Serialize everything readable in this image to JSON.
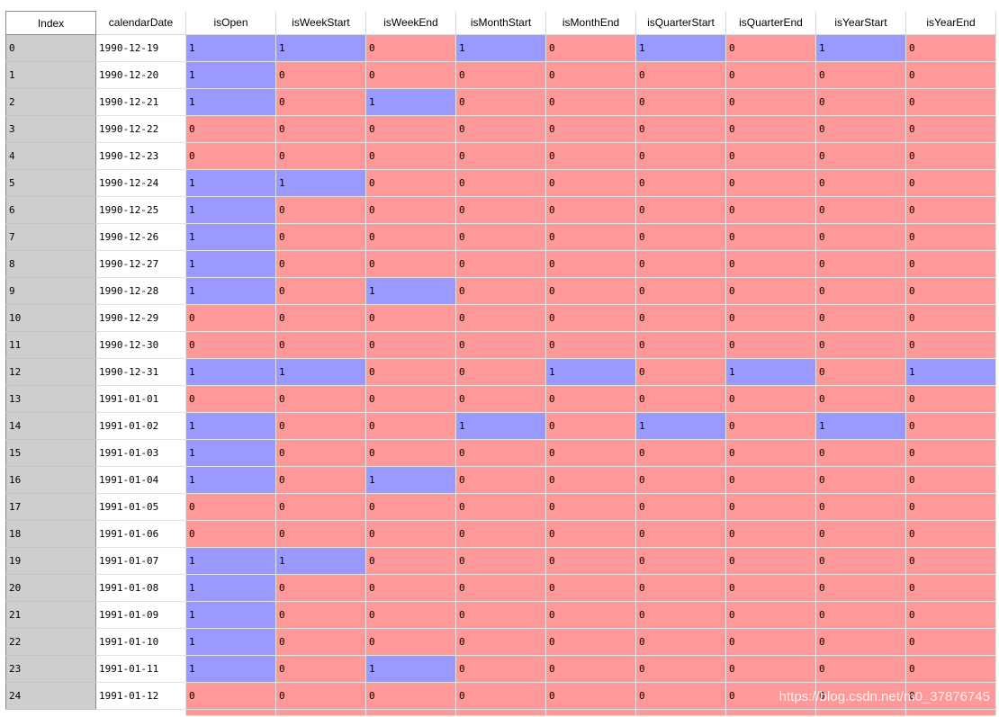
{
  "table": {
    "columns": [
      "Index",
      "calendarDate",
      "isOpen",
      "isWeekStart",
      "isWeekEnd",
      "isMonthStart",
      "isMonthEnd",
      "isQuarterStart",
      "isQuarterEnd",
      "isYearStart",
      "isYearEnd"
    ],
    "rows": [
      [
        "0",
        "1990-12-19",
        "1",
        "1",
        "0",
        "1",
        "0",
        "1",
        "0",
        "1",
        "0"
      ],
      [
        "1",
        "1990-12-20",
        "1",
        "0",
        "0",
        "0",
        "0",
        "0",
        "0",
        "0",
        "0"
      ],
      [
        "2",
        "1990-12-21",
        "1",
        "0",
        "1",
        "0",
        "0",
        "0",
        "0",
        "0",
        "0"
      ],
      [
        "3",
        "1990-12-22",
        "0",
        "0",
        "0",
        "0",
        "0",
        "0",
        "0",
        "0",
        "0"
      ],
      [
        "4",
        "1990-12-23",
        "0",
        "0",
        "0",
        "0",
        "0",
        "0",
        "0",
        "0",
        "0"
      ],
      [
        "5",
        "1990-12-24",
        "1",
        "1",
        "0",
        "0",
        "0",
        "0",
        "0",
        "0",
        "0"
      ],
      [
        "6",
        "1990-12-25",
        "1",
        "0",
        "0",
        "0",
        "0",
        "0",
        "0",
        "0",
        "0"
      ],
      [
        "7",
        "1990-12-26",
        "1",
        "0",
        "0",
        "0",
        "0",
        "0",
        "0",
        "0",
        "0"
      ],
      [
        "8",
        "1990-12-27",
        "1",
        "0",
        "0",
        "0",
        "0",
        "0",
        "0",
        "0",
        "0"
      ],
      [
        "9",
        "1990-12-28",
        "1",
        "0",
        "1",
        "0",
        "0",
        "0",
        "0",
        "0",
        "0"
      ],
      [
        "10",
        "1990-12-29",
        "0",
        "0",
        "0",
        "0",
        "0",
        "0",
        "0",
        "0",
        "0"
      ],
      [
        "11",
        "1990-12-30",
        "0",
        "0",
        "0",
        "0",
        "0",
        "0",
        "0",
        "0",
        "0"
      ],
      [
        "12",
        "1990-12-31",
        "1",
        "1",
        "0",
        "0",
        "1",
        "0",
        "1",
        "0",
        "1"
      ],
      [
        "13",
        "1991-01-01",
        "0",
        "0",
        "0",
        "0",
        "0",
        "0",
        "0",
        "0",
        "0"
      ],
      [
        "14",
        "1991-01-02",
        "1",
        "0",
        "0",
        "1",
        "0",
        "1",
        "0",
        "1",
        "0"
      ],
      [
        "15",
        "1991-01-03",
        "1",
        "0",
        "0",
        "0",
        "0",
        "0",
        "0",
        "0",
        "0"
      ],
      [
        "16",
        "1991-01-04",
        "1",
        "0",
        "1",
        "0",
        "0",
        "0",
        "0",
        "0",
        "0"
      ],
      [
        "17",
        "1991-01-05",
        "0",
        "0",
        "0",
        "0",
        "0",
        "0",
        "0",
        "0",
        "0"
      ],
      [
        "18",
        "1991-01-06",
        "0",
        "0",
        "0",
        "0",
        "0",
        "0",
        "0",
        "0",
        "0"
      ],
      [
        "19",
        "1991-01-07",
        "1",
        "1",
        "0",
        "0",
        "0",
        "0",
        "0",
        "0",
        "0"
      ],
      [
        "20",
        "1991-01-08",
        "1",
        "0",
        "0",
        "0",
        "0",
        "0",
        "0",
        "0",
        "0"
      ],
      [
        "21",
        "1991-01-09",
        "1",
        "0",
        "0",
        "0",
        "0",
        "0",
        "0",
        "0",
        "0"
      ],
      [
        "22",
        "1991-01-10",
        "1",
        "0",
        "0",
        "0",
        "0",
        "0",
        "0",
        "0",
        "0"
      ],
      [
        "23",
        "1991-01-11",
        "1",
        "0",
        "1",
        "0",
        "0",
        "0",
        "0",
        "0",
        "0"
      ],
      [
        "24",
        "1991-01-12",
        "0",
        "0",
        "0",
        "0",
        "0",
        "0",
        "0",
        "0",
        "0"
      ]
    ]
  },
  "colors": {
    "value_one": "#9999ff",
    "value_zero": "#ff9999",
    "index_bg": "#cecece"
  },
  "watermark": "https://blog.csdn.net/m0_37876745"
}
